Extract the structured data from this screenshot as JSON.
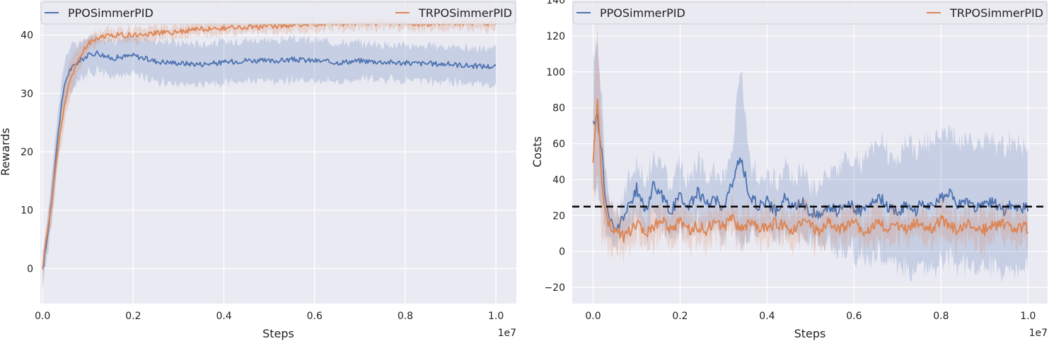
{
  "chart_data": [
    {
      "type": "line",
      "title": "",
      "xlabel": "Steps",
      "ylabel": "Rewards",
      "x_multiplier_label": "1e7",
      "xlim": [
        -0.005,
        1.045
      ],
      "ylim": [
        -6,
        46
      ],
      "xticks": [
        0.0,
        0.2,
        0.4,
        0.6,
        0.8,
        1.0
      ],
      "xtick_labels": [
        "0.0",
        "0.2",
        "0.4",
        "0.6",
        "0.8",
        "1.0"
      ],
      "yticks": [
        0,
        10,
        20,
        30,
        40
      ],
      "ytick_labels": [
        "0",
        "10",
        "20",
        "30",
        "40"
      ],
      "grid": true,
      "legend": "top",
      "series": [
        {
          "name": "PPOSimmerPID",
          "color": "#4c72b0",
          "x": [
            0.0,
            0.01,
            0.02,
            0.03,
            0.04,
            0.05,
            0.06,
            0.08,
            0.1,
            0.12,
            0.15,
            0.2,
            0.25,
            0.3,
            0.35,
            0.4,
            0.45,
            0.5,
            0.55,
            0.6,
            0.65,
            0.7,
            0.75,
            0.8,
            0.85,
            0.9,
            0.95,
            1.0
          ],
          "y": [
            -0.5,
            5,
            12,
            20,
            27,
            32,
            34,
            35.5,
            36.5,
            37,
            36,
            36.5,
            35.5,
            35.2,
            35,
            35.3,
            35.7,
            35.5,
            35.8,
            35.6,
            35.3,
            35.6,
            35.4,
            35.2,
            35.1,
            35.0,
            34.7,
            34.6
          ],
          "band": [
            3,
            3,
            4,
            4,
            4,
            4,
            4,
            3,
            3,
            3,
            3,
            3,
            3.5,
            3.5,
            3.5,
            3.5,
            3.5,
            3.5,
            3.5,
            3.5,
            3.5,
            3,
            3,
            3,
            3,
            3,
            3,
            3
          ]
        },
        {
          "name": "TRPOSimmerPID",
          "color": "#dd8452",
          "x": [
            0.0,
            0.01,
            0.02,
            0.03,
            0.04,
            0.05,
            0.06,
            0.08,
            0.1,
            0.12,
            0.15,
            0.2,
            0.25,
            0.3,
            0.35,
            0.4,
            0.45,
            0.5,
            0.55,
            0.6,
            0.65,
            0.7,
            0.75,
            0.8,
            0.85,
            0.9,
            0.95,
            1.0
          ],
          "y": [
            0,
            6,
            11,
            18,
            24,
            29,
            32,
            36,
            38.5,
            39.5,
            40,
            40,
            40.3,
            40.6,
            41,
            41.2,
            41.3,
            41.5,
            41.7,
            41.9,
            42.0,
            42.0,
            42.1,
            42.0,
            41.9,
            42.0,
            42.1,
            42.0
          ],
          "band": [
            1.5,
            2,
            3,
            3,
            3,
            3,
            3,
            2,
            1,
            1,
            1,
            1,
            1,
            1,
            1,
            1,
            1,
            1,
            1,
            1,
            1,
            1,
            1,
            1,
            1,
            1,
            1,
            1
          ]
        }
      ]
    },
    {
      "type": "line",
      "title": "",
      "xlabel": "Steps",
      "ylabel": "Costs",
      "x_multiplier_label": "1e7",
      "xlim": [
        -0.048,
        1.045
      ],
      "ylim": [
        -29,
        140
      ],
      "xticks": [
        0.0,
        0.2,
        0.4,
        0.6,
        0.8,
        1.0
      ],
      "xtick_labels": [
        "0.0",
        "0.2",
        "0.4",
        "0.6",
        "0.8",
        "1.0"
      ],
      "yticks": [
        -20,
        0,
        20,
        40,
        60,
        80,
        100,
        120,
        140
      ],
      "ytick_labels": [
        "−20",
        "0",
        "20",
        "40",
        "60",
        "80",
        "100",
        "120",
        "140"
      ],
      "grid": true,
      "legend": "top",
      "threshold": 25,
      "series": [
        {
          "name": "PPOSimmerPID",
          "color": "#4c72b0",
          "x": [
            0.0,
            0.01,
            0.02,
            0.03,
            0.05,
            0.07,
            0.09,
            0.1,
            0.12,
            0.14,
            0.16,
            0.18,
            0.2,
            0.22,
            0.24,
            0.26,
            0.28,
            0.3,
            0.32,
            0.33,
            0.34,
            0.35,
            0.36,
            0.38,
            0.4,
            0.42,
            0.44,
            0.46,
            0.48,
            0.5,
            0.52,
            0.54,
            0.56,
            0.58,
            0.6,
            0.62,
            0.64,
            0.66,
            0.68,
            0.7,
            0.72,
            0.74,
            0.76,
            0.78,
            0.8,
            0.82,
            0.84,
            0.86,
            0.88,
            0.9,
            0.92,
            0.94,
            0.96,
            0.98,
            1.0
          ],
          "y": [
            70,
            75,
            55,
            25,
            10,
            20,
            28,
            35,
            22,
            38,
            30,
            22,
            32,
            24,
            34,
            26,
            30,
            24,
            38,
            46,
            52,
            42,
            30,
            26,
            28,
            22,
            30,
            24,
            28,
            22,
            20,
            26,
            22,
            28,
            24,
            22,
            26,
            30,
            24,
            22,
            26,
            22,
            28,
            24,
            30,
            32,
            26,
            28,
            24,
            26,
            28,
            22,
            26,
            24,
            25
          ],
          "band": [
            40,
            40,
            35,
            15,
            10,
            12,
            15,
            15,
            15,
            18,
            15,
            15,
            18,
            15,
            18,
            15,
            18,
            15,
            20,
            35,
            50,
            35,
            20,
            15,
            18,
            15,
            18,
            15,
            18,
            15,
            15,
            20,
            20,
            25,
            25,
            25,
            30,
            30,
            30,
            30,
            35,
            35,
            35,
            35,
            35,
            35,
            35,
            35,
            35,
            35,
            35,
            35,
            35,
            35,
            35
          ]
        },
        {
          "name": "TRPOSimmerPID",
          "color": "#dd8452",
          "x": [
            0.0,
            0.01,
            0.02,
            0.03,
            0.05,
            0.07,
            0.09,
            0.1,
            0.12,
            0.14,
            0.16,
            0.18,
            0.2,
            0.22,
            0.24,
            0.26,
            0.28,
            0.3,
            0.32,
            0.34,
            0.36,
            0.38,
            0.4,
            0.42,
            0.44,
            0.46,
            0.48,
            0.5,
            0.52,
            0.54,
            0.56,
            0.58,
            0.6,
            0.62,
            0.64,
            0.66,
            0.68,
            0.7,
            0.72,
            0.74,
            0.76,
            0.78,
            0.8,
            0.82,
            0.84,
            0.86,
            0.88,
            0.9,
            0.92,
            0.94,
            0.96,
            0.98,
            1.0
          ],
          "y": [
            50,
            85,
            40,
            18,
            12,
            8,
            12,
            15,
            10,
            14,
            18,
            12,
            16,
            12,
            14,
            12,
            16,
            14,
            18,
            12,
            16,
            14,
            12,
            16,
            14,
            12,
            18,
            14,
            10,
            16,
            12,
            14,
            18,
            10,
            14,
            16,
            12,
            14,
            12,
            16,
            14,
            12,
            18,
            14,
            12,
            16,
            14,
            12,
            14,
            16,
            12,
            14,
            13
          ],
          "band": [
            30,
            40,
            30,
            15,
            10,
            8,
            8,
            8,
            8,
            8,
            8,
            8,
            8,
            8,
            8,
            8,
            8,
            8,
            8,
            8,
            8,
            8,
            8,
            8,
            8,
            8,
            8,
            8,
            8,
            8,
            8,
            8,
            8,
            8,
            8,
            8,
            8,
            8,
            8,
            8,
            8,
            8,
            8,
            8,
            8,
            8,
            8,
            8,
            8,
            8,
            8,
            8,
            8
          ]
        }
      ]
    }
  ]
}
